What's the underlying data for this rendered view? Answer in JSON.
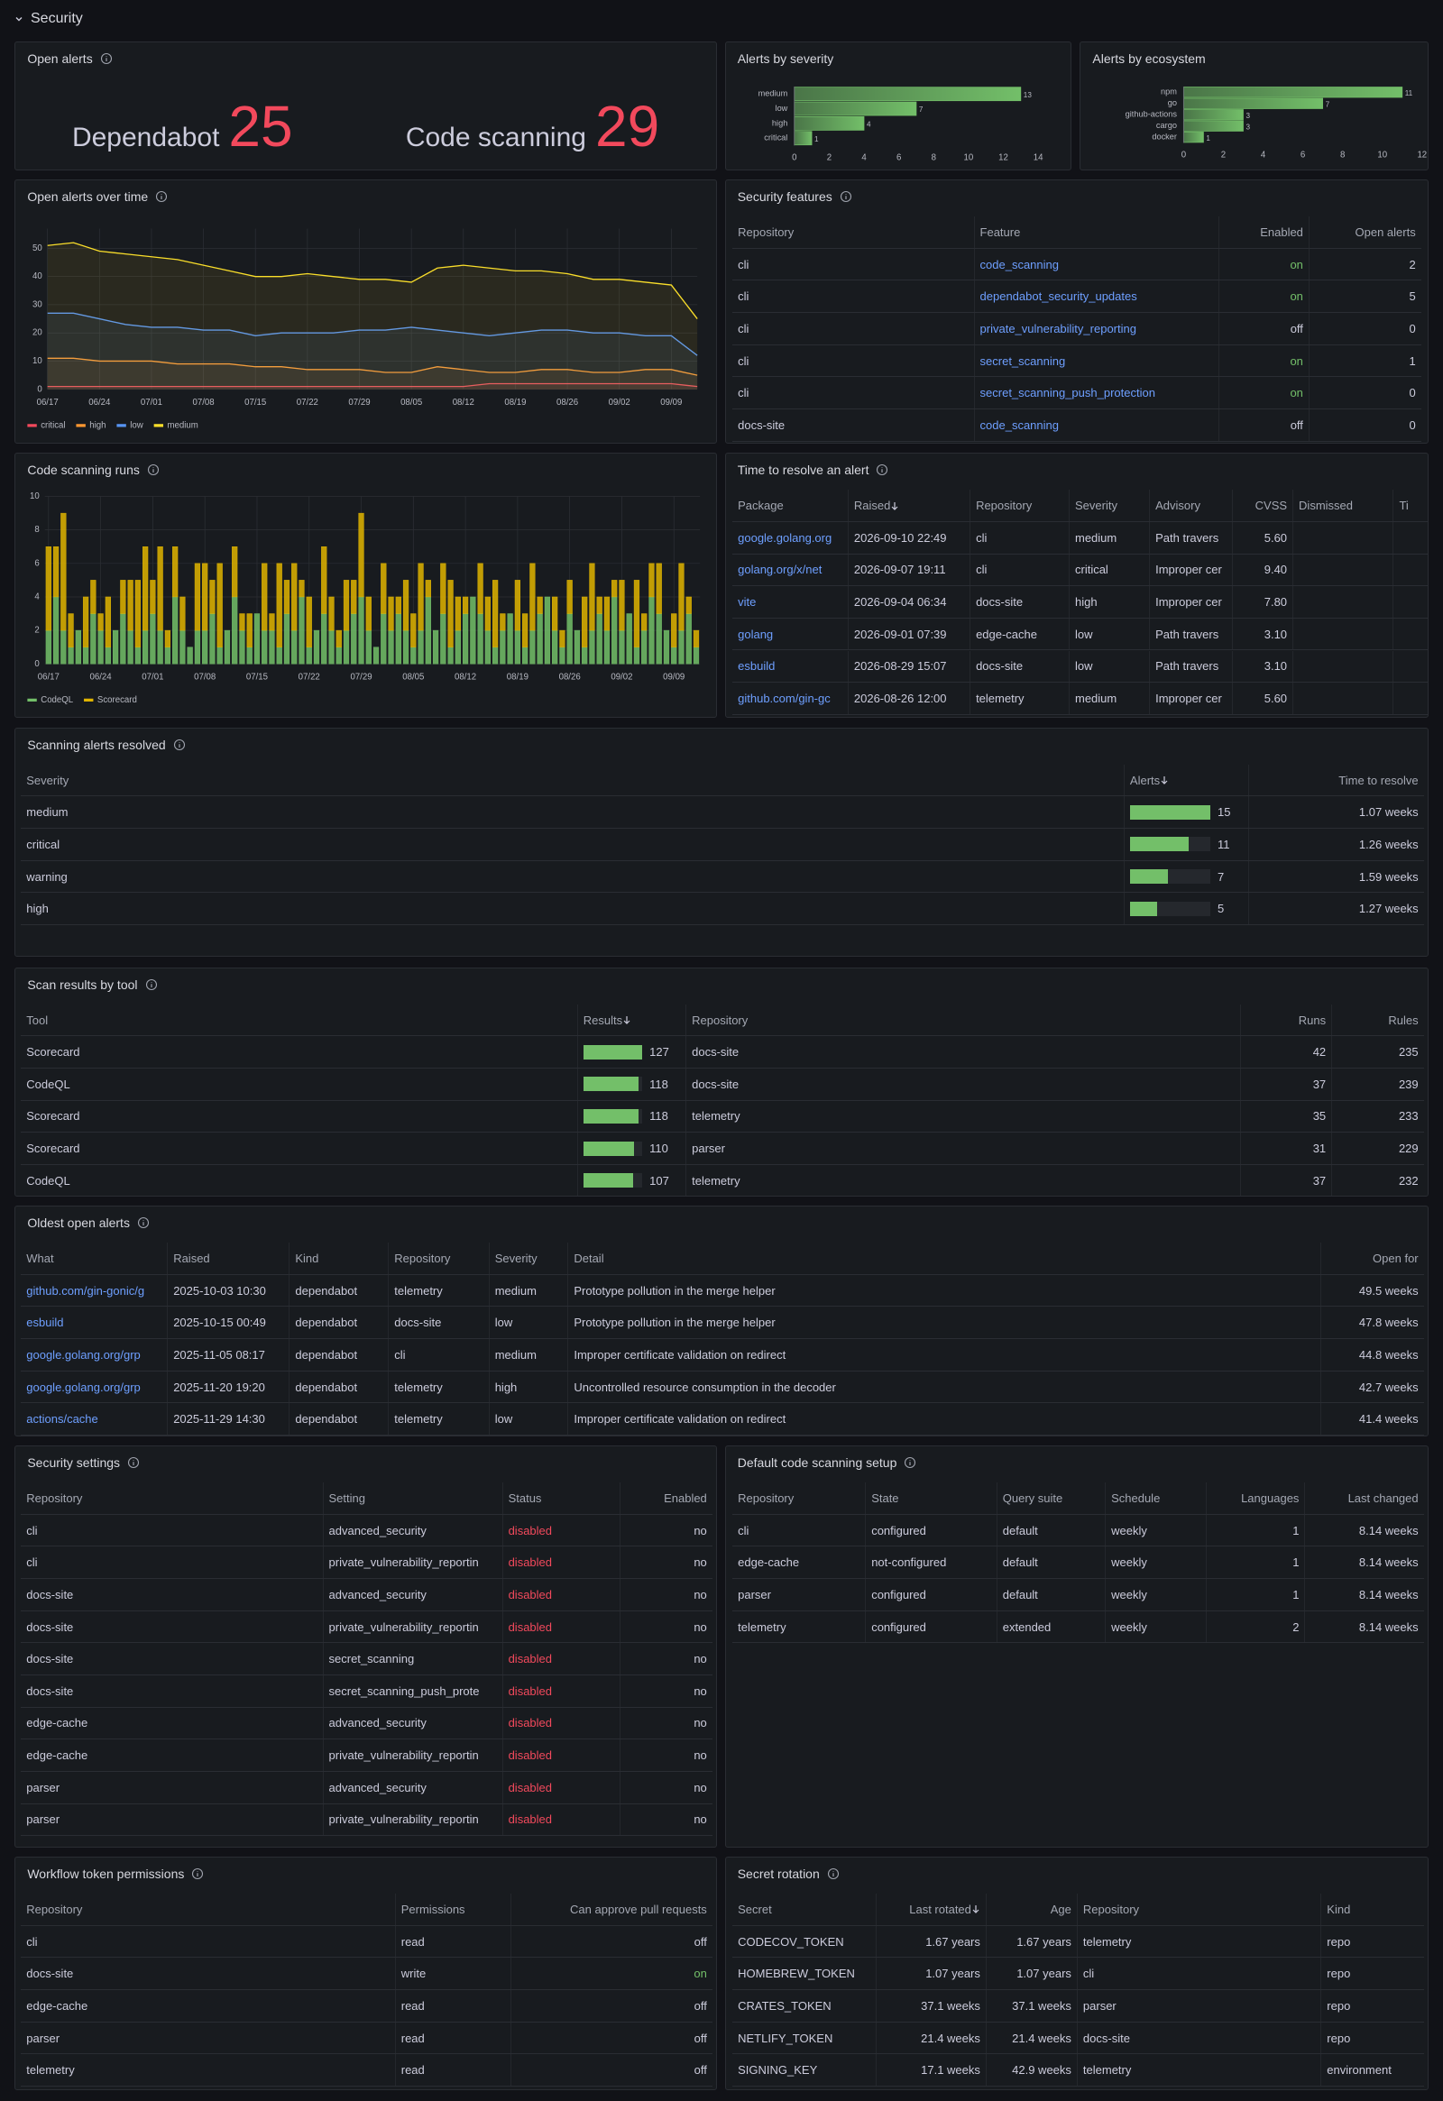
{
  "section": "Security",
  "panels": {
    "open_alerts": {
      "title": "Open alerts",
      "type": "stat",
      "color": "#f2495c",
      "items": [
        {
          "name": "Dependabot",
          "value": 25
        },
        {
          "name": "Code scanning",
          "value": 29
        }
      ]
    },
    "alerts_by_severity": {
      "title": "Alerts by severity",
      "type": "hbar",
      "color": "#73bf69",
      "categories": [
        "medium",
        "low",
        "high",
        "critical"
      ],
      "values": [
        13,
        7,
        4,
        1
      ],
      "xlim": [
        0,
        15
      ],
      "xticks": [
        0,
        2,
        4,
        6,
        8,
        10,
        12,
        14
      ]
    },
    "alerts_by_ecosystem": {
      "title": "Alerts by ecosystem",
      "type": "hbar",
      "color": "#73bf69",
      "categories": [
        "npm",
        "go",
        "github-actions",
        "cargo",
        "docker"
      ],
      "values": [
        11,
        7,
        3,
        3,
        1
      ],
      "xlim": [
        0,
        12
      ],
      "xticks": [
        0,
        2,
        4,
        6,
        8,
        10,
        12
      ]
    },
    "alerts_over_time": {
      "title": "Open alerts over time",
      "type": "line",
      "grid": true,
      "legend": "bottom-left",
      "categories": [
        "06/17",
        null,
        "06/24",
        null,
        "07/01",
        null,
        "07/08",
        null,
        "07/15",
        null,
        "07/22",
        null,
        "07/29",
        null,
        "08/05",
        null,
        "08/12",
        null,
        "08/19",
        null,
        "08/26",
        null,
        "09/02",
        null,
        "09/09",
        null
      ],
      "ylim": [
        0,
        57
      ],
      "yticks": [
        0,
        10,
        20,
        30,
        40,
        50
      ],
      "series": [
        {
          "name": "critical",
          "color": "#f2495c",
          "values": [
            1,
            1,
            1,
            1,
            1,
            1,
            1,
            1,
            1,
            1,
            1,
            1,
            1,
            1,
            1,
            1,
            1,
            2,
            2,
            2,
            2,
            2,
            2,
            2,
            2,
            1
          ]
        },
        {
          "name": "high",
          "color": "#ff9830",
          "values": [
            11,
            11,
            10,
            10,
            10,
            9,
            9,
            9,
            8,
            8,
            7,
            7,
            7,
            6,
            6,
            8,
            7,
            6,
            6,
            7,
            7,
            6,
            6,
            7,
            7,
            5
          ]
        },
        {
          "name": "low",
          "color": "#5794f2",
          "values": [
            27,
            27,
            25,
            23,
            22,
            22,
            21,
            21,
            19,
            20,
            20,
            20,
            21,
            21,
            22,
            21,
            20,
            19,
            20,
            21,
            21,
            20,
            20,
            19,
            19,
            12
          ]
        },
        {
          "name": "medium",
          "color": "#fade2a",
          "values": [
            51,
            52,
            49,
            48,
            47,
            46,
            44,
            42,
            40,
            40,
            41,
            40,
            39,
            39,
            38,
            43,
            44,
            43,
            42,
            42,
            41,
            39,
            39,
            38,
            37,
            25
          ]
        }
      ]
    },
    "security_features": {
      "title": "Security features",
      "type": "table",
      "columns": [
        {
          "name": "Repository"
        },
        {
          "name": "Feature",
          "color": "#6e9fff"
        },
        {
          "name": "Enabled",
          "align": "right",
          "value_colors": {
            "on": "#73bf69"
          }
        },
        {
          "name": "Open alerts",
          "align": "right"
        }
      ],
      "rows": [
        [
          "cli",
          "code_scanning",
          "on",
          "2"
        ],
        [
          "cli",
          "dependabot_security_updates",
          "on",
          "5"
        ],
        [
          "cli",
          "private_vulnerability_reporting",
          "off",
          "0"
        ],
        [
          "cli",
          "secret_scanning",
          "on",
          "1"
        ],
        [
          "cli",
          "secret_scanning_push_protection",
          "on",
          "0"
        ],
        [
          "docs-site",
          "code_scanning",
          "off",
          "0"
        ]
      ]
    },
    "code_scanning_runs": {
      "title": "Code scanning runs",
      "type": "stacked_bar",
      "grid": true,
      "legend": "bottom-left",
      "categories": [
        "06/17",
        null,
        null,
        null,
        null,
        null,
        null,
        "06/24",
        null,
        null,
        null,
        null,
        null,
        null,
        "07/01",
        null,
        null,
        null,
        null,
        null,
        null,
        "07/08",
        null,
        null,
        null,
        null,
        null,
        null,
        "07/15",
        null,
        null,
        null,
        null,
        null,
        null,
        "07/22",
        null,
        null,
        null,
        null,
        null,
        null,
        "07/29",
        null,
        null,
        null,
        null,
        null,
        null,
        "08/05",
        null,
        null,
        null,
        null,
        null,
        null,
        "08/12",
        null,
        null,
        null,
        null,
        null,
        null,
        "08/19",
        null,
        null,
        null,
        null,
        null,
        null,
        "08/26",
        null,
        null,
        null,
        null,
        null,
        null,
        "09/02",
        null,
        null,
        null,
        null,
        null,
        null,
        "09/09",
        null,
        null,
        null
      ],
      "ylim": [
        0,
        10
      ],
      "yticks": [
        0,
        2,
        4,
        6,
        8,
        10
      ],
      "series": [
        {
          "name": "CodeQL",
          "color": "#73bf69",
          "values": [
            2,
            4,
            2,
            1,
            2,
            1,
            3,
            2,
            1,
            2,
            3,
            2,
            1,
            2,
            3,
            2,
            1,
            4,
            2,
            1,
            2,
            2,
            3,
            1,
            2,
            4,
            2,
            1,
            3,
            2,
            2,
            1,
            3,
            2,
            4,
            1,
            2,
            3,
            2,
            1,
            2,
            3,
            4,
            2,
            1,
            3,
            2,
            3,
            2,
            1,
            2,
            4,
            2,
            3,
            1,
            2,
            3,
            4,
            3,
            2,
            1,
            2,
            3,
            2,
            1,
            2,
            3,
            4,
            2,
            1,
            3,
            2,
            1,
            2,
            3,
            2,
            4,
            2,
            3,
            1,
            2,
            4,
            3,
            2,
            1,
            2,
            3,
            1
          ]
        },
        {
          "name": "Scorecard",
          "color": "#e0b400",
          "values": [
            5,
            3,
            7,
            2,
            0,
            3,
            2,
            1,
            3,
            0,
            2,
            3,
            4,
            5,
            2,
            5,
            1,
            3,
            2,
            0,
            4,
            4,
            2,
            5,
            0,
            3,
            1,
            2,
            0,
            4,
            1,
            5,
            2,
            4,
            1,
            3,
            0,
            4,
            2,
            1,
            3,
            2,
            5,
            2,
            0,
            3,
            2,
            1,
            3,
            2,
            4,
            1,
            0,
            3,
            4,
            2,
            1,
            0,
            3,
            2,
            4,
            1,
            0,
            3,
            2,
            4,
            1,
            0,
            2,
            1,
            2,
            0,
            3,
            4,
            1,
            2,
            1,
            3,
            0,
            4,
            1,
            2,
            3,
            0,
            2,
            4,
            1,
            1
          ]
        }
      ]
    },
    "time_to_resolve": {
      "title": "Time to resolve an alert",
      "type": "table",
      "columns": [
        {
          "name": "Package",
          "color": "#6e9fff"
        },
        {
          "name": "Raised",
          "sort": "desc"
        },
        {
          "name": "Repository"
        },
        {
          "name": "Severity"
        },
        {
          "name": "Advisory"
        },
        {
          "name": "CVSS",
          "align": "right"
        },
        {
          "name": "Dismissed"
        },
        {
          "name": "Ti"
        }
      ],
      "rows": [
        [
          "google.golang.org",
          "2026-09-10 22:49",
          "cli",
          "medium",
          "Path travers",
          "5.60"
        ],
        [
          "golang.org/x/net",
          "2026-09-07 19:11",
          "cli",
          "critical",
          "Improper cer",
          "9.40"
        ],
        [
          "vite",
          "2026-09-04 06:34",
          "docs-site",
          "high",
          "Improper cer",
          "7.80"
        ],
        [
          "golang",
          "2026-09-01 07:39",
          "edge-cache",
          "low",
          "Path travers",
          "3.10"
        ],
        [
          "esbuild",
          "2026-08-29 15:07",
          "docs-site",
          "low",
          "Path travers",
          "3.10"
        ],
        [
          "github.com/gin-gc",
          "2026-08-26 12:00",
          "telemetry",
          "medium",
          "Improper cer",
          "5.60"
        ]
      ]
    },
    "scanning_alerts_resolved": {
      "title": "Scanning alerts resolved",
      "type": "table",
      "columns": [
        {
          "name": "Severity"
        },
        {
          "name": "Alerts",
          "sort": "desc",
          "gauge_lim": [
            0,
            15
          ],
          "gauge_color": "#73bf69"
        },
        {
          "name": "Time to resolve",
          "align": "right"
        }
      ],
      "rows": [
        [
          "medium",
          15,
          "1.07 weeks"
        ],
        [
          "critical",
          11,
          "1.26 weeks"
        ],
        [
          "warning",
          7,
          "1.59 weeks"
        ],
        [
          "high",
          5,
          "1.27 weeks"
        ]
      ]
    },
    "scan_results_by_tool": {
      "title": "Scan results by tool",
      "type": "table",
      "columns": [
        {
          "name": "Tool"
        },
        {
          "name": "Results",
          "sort": "desc",
          "gauge_lim": [
            0,
            127
          ],
          "gauge_color": "#73bf69"
        },
        {
          "name": "Repository"
        },
        {
          "name": "Runs",
          "align": "right"
        },
        {
          "name": "Rules",
          "align": "right"
        }
      ],
      "rows": [
        [
          "Scorecard",
          127,
          "docs-site",
          "42",
          "235"
        ],
        [
          "CodeQL",
          118,
          "docs-site",
          "37",
          "239"
        ],
        [
          "Scorecard",
          118,
          "telemetry",
          "35",
          "233"
        ],
        [
          "Scorecard",
          110,
          "parser",
          "31",
          "229"
        ],
        [
          "CodeQL",
          107,
          "telemetry",
          "37",
          "232"
        ]
      ]
    },
    "oldest_open_alerts": {
      "title": "Oldest open alerts",
      "type": "table",
      "columns": [
        {
          "name": "What",
          "color": "#6e9fff"
        },
        {
          "name": "Raised"
        },
        {
          "name": "Kind"
        },
        {
          "name": "Repository"
        },
        {
          "name": "Severity"
        },
        {
          "name": "Detail"
        },
        {
          "name": "Open for",
          "align": "right"
        }
      ],
      "rows": [
        [
          "github.com/gin-gonic/g",
          "2025-10-03 10:30",
          "dependabot",
          "telemetry",
          "medium",
          "Prototype pollution in the merge helper",
          "49.5 weeks"
        ],
        [
          "esbuild",
          "2025-10-15 00:49",
          "dependabot",
          "docs-site",
          "low",
          "Prototype pollution in the merge helper",
          "47.8 weeks"
        ],
        [
          "google.golang.org/grp",
          "2025-11-05 08:17",
          "dependabot",
          "cli",
          "medium",
          "Improper certificate validation on redirect",
          "44.8 weeks"
        ],
        [
          "google.golang.org/grp",
          "2025-11-20 19:20",
          "dependabot",
          "telemetry",
          "high",
          "Uncontrolled resource consumption in the decoder",
          "42.7 weeks"
        ],
        [
          "actions/cache",
          "2025-11-29 14:30",
          "dependabot",
          "telemetry",
          "low",
          "Improper certificate validation on redirect",
          "41.4 weeks"
        ]
      ]
    },
    "security_settings": {
      "title": "Security settings",
      "type": "table",
      "columns": [
        {
          "name": "Repository"
        },
        {
          "name": "Setting"
        },
        {
          "name": "Status",
          "color": "#f2495c"
        },
        {
          "name": "Enabled",
          "align": "right"
        }
      ],
      "rows": [
        [
          "cli",
          "advanced_security",
          "disabled",
          "no"
        ],
        [
          "cli",
          "private_vulnerability_reportin",
          "disabled",
          "no"
        ],
        [
          "docs-site",
          "advanced_security",
          "disabled",
          "no"
        ],
        [
          "docs-site",
          "private_vulnerability_reportin",
          "disabled",
          "no"
        ],
        [
          "docs-site",
          "secret_scanning",
          "disabled",
          "no"
        ],
        [
          "docs-site",
          "secret_scanning_push_prote",
          "disabled",
          "no"
        ],
        [
          "edge-cache",
          "advanced_security",
          "disabled",
          "no"
        ],
        [
          "edge-cache",
          "private_vulnerability_reportin",
          "disabled",
          "no"
        ],
        [
          "parser",
          "advanced_security",
          "disabled",
          "no"
        ],
        [
          "parser",
          "private_vulnerability_reportin",
          "disabled",
          "no"
        ]
      ]
    },
    "default_code_scanning_setup": {
      "title": "Default code scanning setup",
      "type": "table",
      "columns": [
        {
          "name": "Repository"
        },
        {
          "name": "State"
        },
        {
          "name": "Query suite"
        },
        {
          "name": "Schedule"
        },
        {
          "name": "Languages",
          "align": "right"
        },
        {
          "name": "Last changed",
          "align": "right"
        }
      ],
      "rows": [
        [
          "cli",
          "configured",
          "default",
          "weekly",
          "1",
          "8.14 weeks"
        ],
        [
          "edge-cache",
          "not-configured",
          "default",
          "weekly",
          "1",
          "8.14 weeks"
        ],
        [
          "parser",
          "configured",
          "default",
          "weekly",
          "1",
          "8.14 weeks"
        ],
        [
          "telemetry",
          "configured",
          "extended",
          "weekly",
          "2",
          "8.14 weeks"
        ]
      ]
    },
    "workflow_token_permissions": {
      "title": "Workflow token permissions",
      "type": "table",
      "columns": [
        {
          "name": "Repository"
        },
        {
          "name": "Permissions"
        },
        {
          "name": "Can approve pull requests",
          "align": "right",
          "value_colors": {
            "on": "#73bf69"
          }
        }
      ],
      "rows": [
        [
          "cli",
          "read",
          "off"
        ],
        [
          "docs-site",
          "write",
          "on"
        ],
        [
          "edge-cache",
          "read",
          "off"
        ],
        [
          "parser",
          "read",
          "off"
        ],
        [
          "telemetry",
          "read",
          "off"
        ]
      ]
    },
    "secret_rotation": {
      "title": "Secret rotation",
      "type": "table",
      "columns": [
        {
          "name": "Secret"
        },
        {
          "name": "Last rotated",
          "align": "right",
          "sort": "desc"
        },
        {
          "name": "Age",
          "align": "right"
        },
        {
          "name": "Repository"
        },
        {
          "name": "Kind"
        }
      ],
      "rows": [
        [
          "CODECOV_TOKEN",
          "1.67 years",
          "1.67 years",
          "telemetry",
          "repo"
        ],
        [
          "HOMEBREW_TOKEN",
          "1.07 years",
          "1.07 years",
          "cli",
          "repo"
        ],
        [
          "CRATES_TOKEN",
          "37.1 weeks",
          "37.1 weeks",
          "parser",
          "repo"
        ],
        [
          "NETLIFY_TOKEN",
          "21.4 weeks",
          "21.4 weeks",
          "docs-site",
          "repo"
        ],
        [
          "SIGNING_KEY",
          "17.1 weeks",
          "42.9 weeks",
          "telemetry",
          "environment"
        ]
      ]
    }
  }
}
